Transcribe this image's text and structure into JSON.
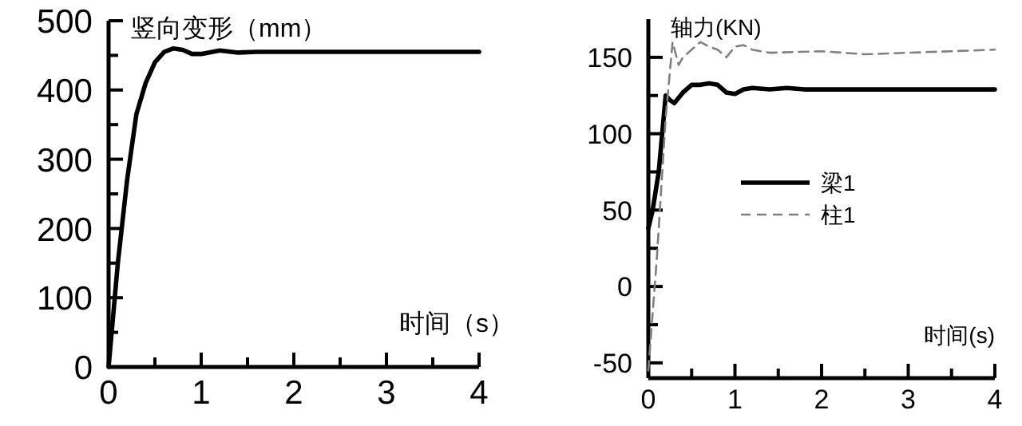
{
  "chart_data": [
    {
      "type": "line",
      "xlabel": "时间（s）",
      "ylabel": "竖向变形（mm）",
      "xlim": [
        0,
        4
      ],
      "ylim": [
        0,
        500
      ],
      "xticks": [
        0,
        {
          "value": 0.5,
          "label": null
        },
        1,
        {
          "value": 1.5,
          "label": null
        },
        2,
        {
          "value": 2.5,
          "label": null
        },
        3,
        {
          "value": 3.5,
          "label": null
        },
        4
      ],
      "yticks": [
        0,
        {
          "value": 50,
          "label": null
        },
        100,
        {
          "value": 150,
          "label": null
        },
        200,
        {
          "value": 250,
          "label": null
        },
        300,
        {
          "value": 350,
          "label": null
        },
        400,
        {
          "value": 450,
          "label": null
        },
        500
      ],
      "grid": false,
      "legend": false,
      "marker": "none",
      "series": [
        {
          "color": "#000000",
          "line_style": "solid",
          "x": [
            0,
            0.1,
            0.2,
            0.3,
            0.4,
            0.5,
            0.6,
            0.7,
            0.8,
            0.9,
            1.0,
            1.2,
            1.4,
            1.6,
            2,
            3,
            4
          ],
          "values": [
            0,
            150,
            270,
            365,
            410,
            440,
            455,
            460,
            458,
            452,
            452,
            457,
            454,
            455,
            455,
            455,
            455
          ]
        }
      ]
    },
    {
      "type": "line",
      "xlabel": "时间(s)",
      "ylabel": "轴力(KN)",
      "xlim": [
        0,
        4
      ],
      "ylim": [
        -60,
        175
      ],
      "xticks": [
        0,
        {
          "value": 0.5,
          "label": null
        },
        1,
        {
          "value": 1.5,
          "label": null
        },
        2,
        {
          "value": 2.5,
          "label": null
        },
        3,
        {
          "value": 3.5,
          "label": null
        },
        4
      ],
      "yticks": [
        -50,
        {
          "value": -25,
          "label": null
        },
        0,
        {
          "value": 25,
          "label": null
        },
        50,
        {
          "value": 75,
          "label": null
        },
        100,
        {
          "value": 125,
          "label": null
        },
        150
      ],
      "grid": false,
      "legend": "left",
      "marker": "none",
      "series": [
        {
          "name": "梁1",
          "color": "#000000",
          "line_style": "solid",
          "x": [
            0,
            0.05,
            0.12,
            0.2,
            0.25,
            0.3,
            0.4,
            0.5,
            0.6,
            0.7,
            0.8,
            0.9,
            1.0,
            1.1,
            1.2,
            1.4,
            1.6,
            1.8,
            2,
            4
          ],
          "values": [
            38,
            50,
            75,
            125,
            122,
            120,
            127,
            132,
            132,
            133,
            132,
            127,
            126,
            129,
            130,
            129,
            130,
            129,
            129,
            129
          ]
        },
        {
          "name": "柱1",
          "color": "#808080",
          "line_style": "dashed",
          "x": [
            0,
            0.1,
            0.2,
            0.28,
            0.35,
            0.4,
            0.5,
            0.6,
            0.7,
            0.8,
            0.9,
            1.0,
            1.1,
            1.2,
            1.4,
            2,
            2.5,
            3,
            4
          ],
          "values": [
            -55,
            20,
            110,
            160,
            145,
            150,
            155,
            160,
            157,
            155,
            150,
            157,
            158,
            155,
            153,
            154,
            152,
            153,
            155
          ]
        }
      ]
    }
  ]
}
